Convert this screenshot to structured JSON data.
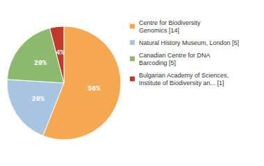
{
  "chart_data": {
    "type": "pie",
    "categories": [
      "Centre for Biodiversity\nGenomics [14]",
      "Natural History Museum, London [5]",
      "Canadian Centre for DNA\nBarcoding [5]",
      "Bulgarian Academy of Sciences,\nInstitute of Biodiversity an... [1]"
    ],
    "values": [
      56,
      20,
      20,
      4
    ],
    "value_labels": [
      "56%",
      "20%",
      "20%",
      "4%"
    ],
    "colors": [
      "#f5a752",
      "#a8c4e0",
      "#8db96e",
      "#c0392b"
    ],
    "data_labels": true,
    "legend": "right"
  }
}
